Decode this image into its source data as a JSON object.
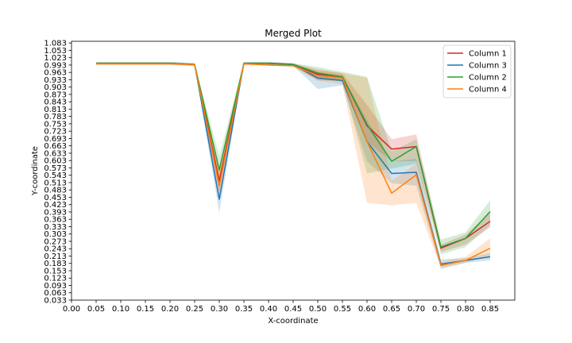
{
  "chart_data": {
    "type": "line",
    "title": "Merged Plot",
    "xlabel": "X-coordinate",
    "ylabel": "Y-coordinate",
    "xlim": [
      0.0,
      0.9
    ],
    "ylim": [
      0.033,
      1.09
    ],
    "grid": false,
    "legend_position": "top-right",
    "x_ticks": [
      "0.00",
      "0.05",
      "0.10",
      "0.15",
      "0.20",
      "0.25",
      "0.30",
      "0.35",
      "0.40",
      "0.45",
      "0.50",
      "0.55",
      "0.60",
      "0.65",
      "0.70",
      "0.75",
      "0.80",
      "0.85"
    ],
    "y_ticks": [
      "0.033",
      "0.063",
      "0.093",
      "0.123",
      "0.153",
      "0.183",
      "0.213",
      "0.243",
      "0.273",
      "0.303",
      "0.333",
      "0.363",
      "0.393",
      "0.423",
      "0.453",
      "0.483",
      "0.513",
      "0.543",
      "0.573",
      "0.603",
      "0.633",
      "0.663",
      "0.693",
      "0.723",
      "0.753",
      "0.783",
      "0.813",
      "0.843",
      "0.873",
      "0.903",
      "0.933",
      "0.963",
      "0.993",
      "1.023",
      "1.053",
      "1.083"
    ],
    "x": [
      0.05,
      0.1,
      0.15,
      0.2,
      0.25,
      0.3,
      0.35,
      0.4,
      0.45,
      0.5,
      0.55,
      0.6,
      0.65,
      0.7,
      0.75,
      0.8,
      0.85
    ],
    "series": [
      {
        "name": "Column 1",
        "color": "#d62728",
        "values": [
          1.0,
          1.0,
          1.0,
          1.0,
          0.995,
          0.52,
          1.0,
          1.0,
          0.995,
          0.955,
          0.945,
          0.745,
          0.65,
          0.66,
          0.245,
          0.285,
          0.355
        ],
        "lower": [
          0.995,
          0.995,
          0.995,
          0.995,
          0.99,
          0.47,
          0.995,
          0.995,
          0.99,
          0.93,
          0.93,
          0.68,
          0.6,
          0.6,
          0.23,
          0.26,
          0.33
        ],
        "upper": [
          1.005,
          1.005,
          1.005,
          1.005,
          1.0,
          0.57,
          1.005,
          1.005,
          1.0,
          0.975,
          0.96,
          0.83,
          0.69,
          0.71,
          0.26,
          0.3,
          0.39
        ]
      },
      {
        "name": "Column 3",
        "color": "#1f77b4",
        "values": [
          1.0,
          1.0,
          1.0,
          1.0,
          0.995,
          0.445,
          1.0,
          1.0,
          0.995,
          0.94,
          0.93,
          0.68,
          0.55,
          0.555,
          0.18,
          0.195,
          0.21
        ],
        "lower": [
          0.995,
          0.995,
          0.995,
          0.995,
          0.99,
          0.39,
          0.995,
          0.995,
          0.99,
          0.895,
          0.91,
          0.6,
          0.51,
          0.5,
          0.16,
          0.185,
          0.195
        ],
        "upper": [
          1.005,
          1.005,
          1.005,
          1.005,
          1.0,
          0.5,
          1.005,
          1.005,
          1.0,
          0.965,
          0.95,
          0.77,
          0.6,
          0.61,
          0.2,
          0.205,
          0.225
        ]
      },
      {
        "name": "Column 2",
        "color": "#2ca02c",
        "values": [
          1.0,
          1.0,
          1.0,
          1.0,
          0.995,
          0.565,
          1.0,
          1.0,
          0.995,
          0.96,
          0.945,
          0.75,
          0.6,
          0.66,
          0.25,
          0.285,
          0.395
        ],
        "lower": [
          0.995,
          0.995,
          0.995,
          0.995,
          0.99,
          0.51,
          0.995,
          0.995,
          0.99,
          0.935,
          0.925,
          0.55,
          0.57,
          0.59,
          0.22,
          0.25,
          0.34
        ],
        "upper": [
          1.005,
          1.005,
          1.005,
          1.005,
          1.0,
          0.62,
          1.005,
          1.005,
          1.0,
          0.985,
          0.965,
          0.945,
          0.64,
          0.69,
          0.28,
          0.31,
          0.44
        ]
      },
      {
        "name": "Column 4",
        "color": "#ff7f0e",
        "values": [
          0.998,
          0.998,
          0.998,
          0.998,
          0.995,
          0.5,
          0.998,
          0.993,
          0.99,
          0.95,
          0.94,
          0.68,
          0.47,
          0.545,
          0.175,
          0.195,
          0.245
        ],
        "lower": [
          0.993,
          0.993,
          0.993,
          0.993,
          0.99,
          0.46,
          0.993,
          0.99,
          0.985,
          0.93,
          0.915,
          0.43,
          0.42,
          0.43,
          0.165,
          0.185,
          0.215
        ],
        "upper": [
          1.003,
          1.003,
          1.003,
          1.003,
          1.0,
          0.56,
          1.003,
          0.998,
          0.995,
          0.97,
          0.96,
          0.94,
          0.52,
          0.59,
          0.19,
          0.21,
          0.285
        ]
      }
    ]
  }
}
